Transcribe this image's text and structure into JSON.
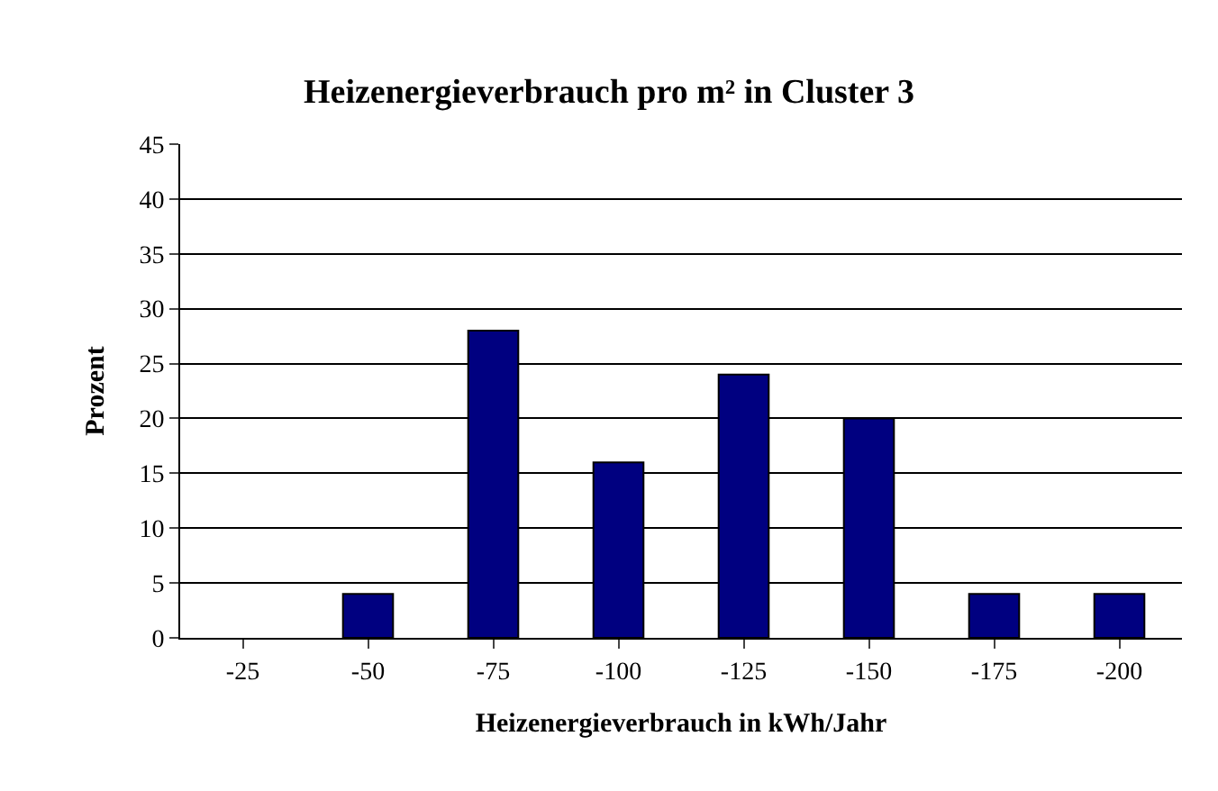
{
  "chart_data": {
    "type": "bar",
    "title": "Heizenergieverbrauch pro m² in Cluster 3",
    "xlabel": "Heizenergieverbrauch in kWh/Jahr",
    "ylabel": "Prozent",
    "categories": [
      "-25",
      "-50",
      "-75",
      "-100",
      "-125",
      "-150",
      "-175",
      "-200"
    ],
    "values": [
      0,
      4,
      28,
      16,
      24,
      20,
      4,
      4
    ],
    "color": "#000080",
    "ylim": [
      0,
      45
    ],
    "yticks": [
      0,
      5,
      10,
      15,
      20,
      25,
      30,
      35,
      40,
      45
    ],
    "grid": "y"
  }
}
